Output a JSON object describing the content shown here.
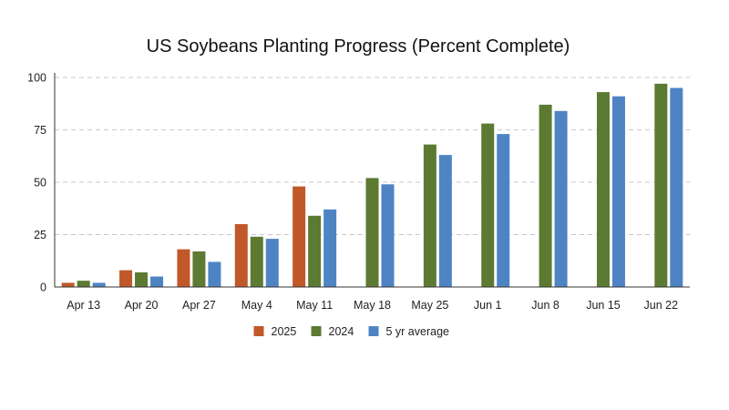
{
  "chart_data": {
    "type": "bar",
    "title": "US Soybeans Planting Progress (Percent Complete)",
    "xlabel": "",
    "ylabel": "",
    "ylim": [
      0,
      100
    ],
    "yticks": [
      0,
      25,
      50,
      75,
      100
    ],
    "grid": true,
    "legend_position": "bottom-center",
    "categories": [
      "Apr 13",
      "Apr 20",
      "Apr 27",
      "May 4",
      "May 11",
      "May 18",
      "May 25",
      "Jun 1",
      "Jun 8",
      "Jun 15",
      "Jun 22"
    ],
    "series": [
      {
        "name": "2025",
        "color": "#c0582a",
        "values": [
          2,
          8,
          18,
          30,
          48,
          null,
          null,
          null,
          null,
          null,
          null
        ]
      },
      {
        "name": "2024",
        "color": "#5c7a32",
        "values": [
          3,
          7,
          17,
          24,
          34,
          52,
          68,
          78,
          87,
          93,
          97
        ]
      },
      {
        "name": "5 yr average",
        "color": "#4f84c4",
        "values": [
          2,
          5,
          12,
          23,
          37,
          49,
          63,
          73,
          84,
          91,
          95
        ]
      }
    ]
  }
}
